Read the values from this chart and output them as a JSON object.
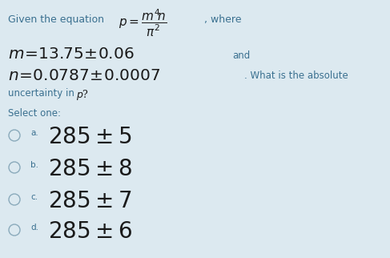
{
  "background_color": "#dce9f0",
  "fig_width": 4.87,
  "fig_height": 3.22,
  "dpi": 100,
  "normal_text_color": "#3a7090",
  "math_text_color": "#1a1a1a",
  "option_text_color": "#1a1a1a",
  "circle_color": "#8aaabb",
  "options": [
    {
      "letter": "a.",
      "text": "$285\\pm5$"
    },
    {
      "letter": "b.",
      "text": "$285\\pm8$"
    },
    {
      "letter": "c.",
      "text": "$285\\pm7$"
    },
    {
      "letter": "d.",
      "text": "$285\\pm6$"
    }
  ]
}
